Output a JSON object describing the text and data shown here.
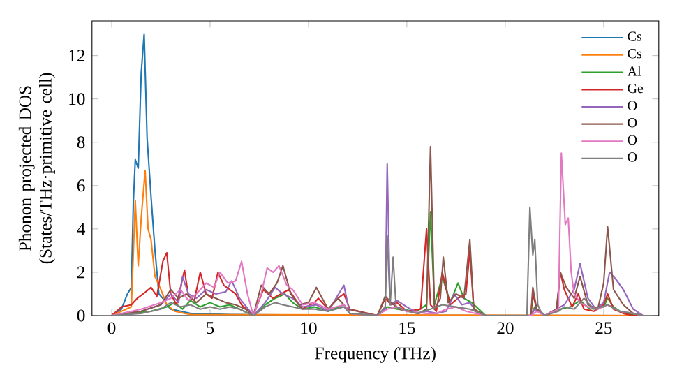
{
  "chart_data": {
    "type": "line",
    "xlabel": "Frequency (THz)",
    "ylabel": "Phonon projected DOS (States/THz·primitive cell)",
    "xlim": [
      -1,
      27.8
    ],
    "ylim": [
      0,
      13.6
    ],
    "xticks": [
      0,
      5,
      10,
      15,
      20,
      25
    ],
    "yticks": [
      0,
      2,
      4,
      6,
      8,
      10,
      12
    ],
    "grid": false,
    "legend": "top right",
    "marker": "none",
    "line_style": "solid",
    "series": [
      {
        "name": "Cs",
        "color": "#1f77b4",
        "x": [
          0,
          0.5,
          0.8,
          1.0,
          1.1,
          1.2,
          1.35,
          1.5,
          1.65,
          1.8,
          2.0,
          2.2,
          2.4,
          2.6,
          2.8,
          3.0,
          3.5,
          4.0,
          6.0,
          10.0,
          27.0
        ],
        "values": [
          0,
          0.3,
          1.0,
          1.3,
          5.2,
          7.2,
          6.8,
          11.2,
          13.0,
          8.2,
          5.5,
          3.0,
          1.0,
          0.8,
          0.5,
          0.3,
          0.2,
          0.1,
          0.05,
          0.02,
          0
        ]
      },
      {
        "name": "Cs",
        "color": "#ff7f0e",
        "x": [
          0,
          1.0,
          1.2,
          1.35,
          1.5,
          1.7,
          1.85,
          2.0,
          2.2,
          2.5,
          2.8,
          3.2,
          4.0,
          27.0
        ],
        "values": [
          0,
          0.4,
          5.3,
          2.3,
          4.5,
          6.7,
          4.0,
          3.5,
          1.8,
          1.2,
          0.5,
          0.2,
          0.05,
          0
        ]
      },
      {
        "name": "Al",
        "color": "#2ca02c",
        "x": [
          0,
          1.0,
          2.0,
          2.8,
          3.2,
          3.6,
          4.0,
          4.5,
          5.0,
          5.5,
          6.0,
          6.5,
          7.2,
          7.8,
          8.3,
          8.8,
          9.2,
          9.7,
          10.3,
          11.0,
          11.8,
          12.1,
          13.5,
          14.0,
          14.5,
          15.5,
          16.0,
          16.2,
          16.4,
          16.8,
          17.2,
          17.6,
          17.9,
          18.3,
          19.0,
          21.3,
          21.5,
          22.0,
          22.8,
          23.3,
          23.8,
          24.3,
          25.0,
          25.2,
          25.5,
          26.0,
          27.0
        ],
        "values": [
          0,
          0.1,
          0.2,
          0.4,
          0.6,
          0.3,
          0.7,
          0.4,
          0.6,
          0.4,
          0.5,
          0.3,
          0.0,
          0.5,
          0.8,
          1.0,
          0.6,
          0.3,
          0.4,
          0.2,
          0.5,
          0.1,
          0,
          0.4,
          0.3,
          0.2,
          0.5,
          4.8,
          0.5,
          1.8,
          0.6,
          1.5,
          0.8,
          0.6,
          0,
          0,
          0.4,
          0,
          0.3,
          0.4,
          0.7,
          0.3,
          0.4,
          0.8,
          0.4,
          0.1,
          0
        ]
      },
      {
        "name": "Ge",
        "color": "#d62728",
        "x": [
          0,
          0.5,
          1.0,
          1.3,
          1.6,
          2.0,
          2.3,
          2.6,
          2.8,
          3.0,
          3.3,
          3.7,
          3.9,
          4.2,
          4.5,
          4.8,
          5.1,
          5.4,
          5.7,
          6.0,
          6.3,
          6.6,
          7.2,
          7.7,
          8.2,
          8.6,
          9.0,
          9.3,
          9.7,
          10.3,
          10.5,
          11.0,
          11.5,
          11.8,
          12.1,
          13.5,
          13.9,
          14.2,
          14.5,
          15.0,
          15.7,
          16.0,
          16.2,
          16.5,
          16.8,
          17.2,
          17.6,
          18.0,
          18.2,
          18.4,
          19.0,
          21.3,
          21.4,
          21.6,
          22.0,
          22.6,
          22.8,
          23.0,
          23.4,
          23.7,
          24.0,
          24.5,
          25.0,
          25.2,
          25.5,
          26.0,
          26.5,
          27.0
        ],
        "values": [
          0,
          0.4,
          0.5,
          0.8,
          1.0,
          1.3,
          0.9,
          2.5,
          2.9,
          1.0,
          0.5,
          2.1,
          0.9,
          0.7,
          2.0,
          1.0,
          0.8,
          2.0,
          1.4,
          1.2,
          1.0,
          0.5,
          0.0,
          1.2,
          0.8,
          1.0,
          1.2,
          0.8,
          0.3,
          0.6,
          0.8,
          0.3,
          0.8,
          1.0,
          0.3,
          0,
          0.8,
          0.5,
          0.6,
          0.2,
          0.3,
          4.0,
          0.5,
          0.2,
          2.0,
          0.5,
          0.8,
          1.0,
          3.0,
          0.3,
          0,
          0,
          1.0,
          0.3,
          0,
          0.2,
          2.0,
          1.2,
          0.4,
          1.0,
          0.3,
          0.2,
          0.5,
          1.0,
          0.3,
          0.1,
          0,
          0
        ]
      },
      {
        "name": "O",
        "color": "#9467bd",
        "x": [
          0,
          1.5,
          2.5,
          3.0,
          3.4,
          3.6,
          3.9,
          4.3,
          4.8,
          5.3,
          5.8,
          6.1,
          6.5,
          7.2,
          7.8,
          8.3,
          8.7,
          9.2,
          9.7,
          10.4,
          11.0,
          11.8,
          12.1,
          13.5,
          13.9,
          14.0,
          14.15,
          14.5,
          15.0,
          15.6,
          16.0,
          16.5,
          17.0,
          17.4,
          17.8,
          18.2,
          18.6,
          19.0,
          21.3,
          21.5,
          22.0,
          22.6,
          23.0,
          23.5,
          23.8,
          24.2,
          24.6,
          25.0,
          25.3,
          25.6,
          26.0,
          26.5,
          27.0
        ],
        "values": [
          0,
          0.2,
          0.5,
          1.0,
          0.6,
          1.8,
          1.0,
          0.8,
          1.2,
          1.0,
          1.1,
          1.6,
          0.8,
          0,
          0.6,
          1.3,
          1.0,
          0.8,
          0.4,
          0.5,
          0.2,
          1.4,
          0.1,
          0,
          0.3,
          7.0,
          0.5,
          0.7,
          0.4,
          0.1,
          0.2,
          0.1,
          0.2,
          1.0,
          0.5,
          0.6,
          0.1,
          0,
          0,
          0.3,
          0,
          0.3,
          0.5,
          1.2,
          2.4,
          0.8,
          0.3,
          0.6,
          2.0,
          1.7,
          1.2,
          0.3,
          0
        ]
      },
      {
        "name": "O",
        "color": "#8c564b",
        "x": [
          0,
          1.5,
          2.5,
          3.0,
          3.4,
          3.8,
          4.3,
          4.8,
          5.3,
          5.8,
          6.3,
          6.8,
          7.2,
          7.6,
          8.0,
          8.4,
          8.7,
          9.1,
          9.5,
          10.0,
          10.4,
          11.0,
          11.5,
          12.0,
          13.5,
          13.9,
          14.2,
          14.6,
          15.0,
          15.6,
          16.0,
          16.2,
          16.4,
          16.7,
          16.85,
          17.1,
          17.5,
          17.9,
          18.2,
          18.4,
          19.0,
          21.3,
          21.4,
          21.6,
          22.0,
          22.6,
          22.8,
          23.1,
          23.5,
          23.8,
          24.2,
          24.7,
          25.0,
          25.2,
          25.5,
          26.0,
          26.5,
          27.0
        ],
        "values": [
          0,
          0.2,
          0.5,
          1.2,
          0.8,
          1.0,
          0.6,
          1.0,
          0.8,
          0.6,
          0.5,
          0.3,
          0.0,
          1.4,
          1.0,
          1.5,
          2.3,
          1.0,
          0.5,
          0.6,
          1.3,
          0.3,
          0.8,
          0.3,
          0,
          0.9,
          0.6,
          0.3,
          0.2,
          0.1,
          0.3,
          7.8,
          0.3,
          0.8,
          2.7,
          0.6,
          1.0,
          0.8,
          3.5,
          0.3,
          0,
          0,
          1.3,
          0.3,
          0,
          0.3,
          2.0,
          1.3,
          0.8,
          1.8,
          0.5,
          0.3,
          1.5,
          4.1,
          1.2,
          0.5,
          0.1,
          0
        ]
      },
      {
        "name": "O",
        "color": "#e377c2",
        "x": [
          0,
          1.5,
          2.5,
          3.0,
          3.5,
          3.9,
          4.3,
          4.8,
          5.2,
          5.5,
          5.9,
          6.3,
          6.6,
          6.9,
          7.2,
          7.6,
          7.9,
          8.2,
          8.5,
          8.9,
          9.2,
          9.7,
          10.3,
          11.0,
          11.8,
          12.1,
          13.5,
          14.0,
          14.5,
          15.0,
          16.0,
          16.5,
          17.0,
          17.5,
          18.0,
          19.0,
          21.3,
          21.6,
          22.0,
          22.7,
          22.85,
          23.05,
          23.2,
          23.35,
          23.5,
          23.8,
          24.2,
          24.7,
          25.2,
          25.8,
          26.5,
          27.0
        ],
        "values": [
          0,
          0.3,
          0.6,
          0.8,
          1.2,
          0.7,
          1.0,
          1.5,
          1.3,
          2.0,
          1.5,
          1.6,
          2.5,
          1.0,
          0.0,
          1.0,
          2.2,
          2.0,
          2.3,
          1.4,
          1.2,
          0.5,
          0.6,
          0.3,
          0.5,
          0.1,
          0,
          0.3,
          0.4,
          0.2,
          0.1,
          0.1,
          0.3,
          0.4,
          0.2,
          0,
          0,
          0.2,
          0,
          0.3,
          7.5,
          4.2,
          4.5,
          2.0,
          1.0,
          0.6,
          0.4,
          0.3,
          0.5,
          0.2,
          0.1,
          0
        ]
      },
      {
        "name": "O",
        "color": "#7f7f7f",
        "x": [
          0,
          1.5,
          2.5,
          3.0,
          3.5,
          4.0,
          4.5,
          5.0,
          5.5,
          6.0,
          6.5,
          7.2,
          7.8,
          8.3,
          8.7,
          9.2,
          9.7,
          10.3,
          11.0,
          11.8,
          12.1,
          13.5,
          13.9,
          14.0,
          14.15,
          14.3,
          14.45,
          14.8,
          15.5,
          16.2,
          16.8,
          17.5,
          18.2,
          19.0,
          21.1,
          21.25,
          21.4,
          21.5,
          21.65,
          21.8,
          22.0,
          22.7,
          23.0,
          23.5,
          24.0,
          24.5,
          25.2,
          25.8,
          26.5,
          27.0
        ],
        "values": [
          0,
          0.1,
          0.3,
          0.6,
          0.4,
          0.5,
          0.3,
          0.4,
          0.3,
          0.4,
          0.3,
          0,
          0.4,
          0.6,
          0.5,
          0.4,
          0.3,
          0.3,
          0.2,
          0.4,
          0.1,
          0,
          0.4,
          3.7,
          0.5,
          2.7,
          0.4,
          0.3,
          0.1,
          0.3,
          0.5,
          0.4,
          0.3,
          0,
          0,
          5.0,
          2.8,
          3.5,
          0.5,
          0.2,
          0,
          0.2,
          0.4,
          0.3,
          0.8,
          0.3,
          0.5,
          0.2,
          0.1,
          0
        ]
      }
    ]
  }
}
